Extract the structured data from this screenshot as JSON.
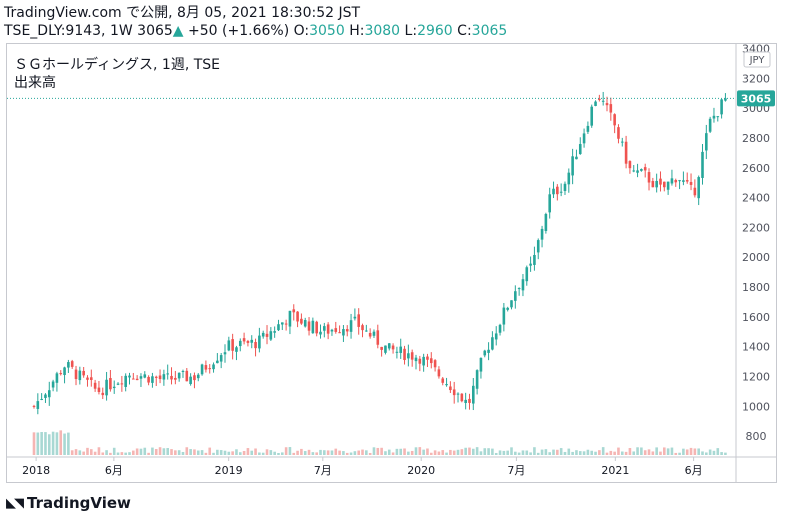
{
  "header": {
    "line1": "TradingView.com で公開, 8月 05, 2021 18:30:52 JST",
    "symbol": "TSE_DLY:9143, 1W",
    "price": "3065",
    "arrow": "▲",
    "change": "+50 (+1.66%)",
    "o_label": "O:",
    "o_val": "3050",
    "h_label": "H:",
    "h_val": "3080",
    "l_label": "L:",
    "l_val": "2960",
    "c_label": "C:",
    "c_val": "3065"
  },
  "chart_title": "ＳＧホールディングス, 1週, TSE",
  "volume_label": "出来高",
  "currency": "JPY",
  "last_price_label": "3065",
  "brand": "TradingView",
  "colors": {
    "up": "#26a69a",
    "down": "#ef5350",
    "vol_up": "#a8d8d3",
    "vol_down": "#f5b5b3",
    "last": "#26a69a"
  },
  "chart_data": {
    "type": "line",
    "title": "ＳＧホールディングス, 1週, TSE",
    "style": "candlestick",
    "y_ticks": [
      800,
      1000,
      1200,
      1400,
      1600,
      1800,
      2000,
      2200,
      2400,
      2600,
      2800,
      3000,
      3200,
      3400
    ],
    "ylim": [
      660,
      3430
    ],
    "x_tick_labels": [
      "2018",
      "6月",
      "2019",
      "7月",
      "2020",
      "7月",
      "2021",
      "6月"
    ],
    "x": [
      "2018-01",
      "2018-03",
      "2018-05",
      "2018-07",
      "2018-09",
      "2018-11",
      "2019-01",
      "2019-03",
      "2019-05",
      "2019-07",
      "2019-09",
      "2019-11",
      "2020-01",
      "2020-03",
      "2020-04",
      "2020-05",
      "2020-06",
      "2020-07",
      "2020-08",
      "2020-09",
      "2020-10",
      "2020-11",
      "2020-12",
      "2021-01",
      "2021-02",
      "2021-03",
      "2021-04",
      "2021-05",
      "2021-06",
      "2021-07",
      "2021-08"
    ],
    "series": [
      {
        "values": [
          1000,
          1280,
          1100,
          1220,
          1180,
          1200,
          1400,
          1430,
          1610,
          1500,
          1560,
          1380,
          1330,
          1130,
          1010,
          1350,
          1580,
          1800,
          1950,
          2400,
          2500,
          2800,
          3100,
          2900,
          2580,
          2550,
          2450,
          2550,
          2420,
          2900,
          3065
        ]
      }
    ],
    "last": 3065
  }
}
